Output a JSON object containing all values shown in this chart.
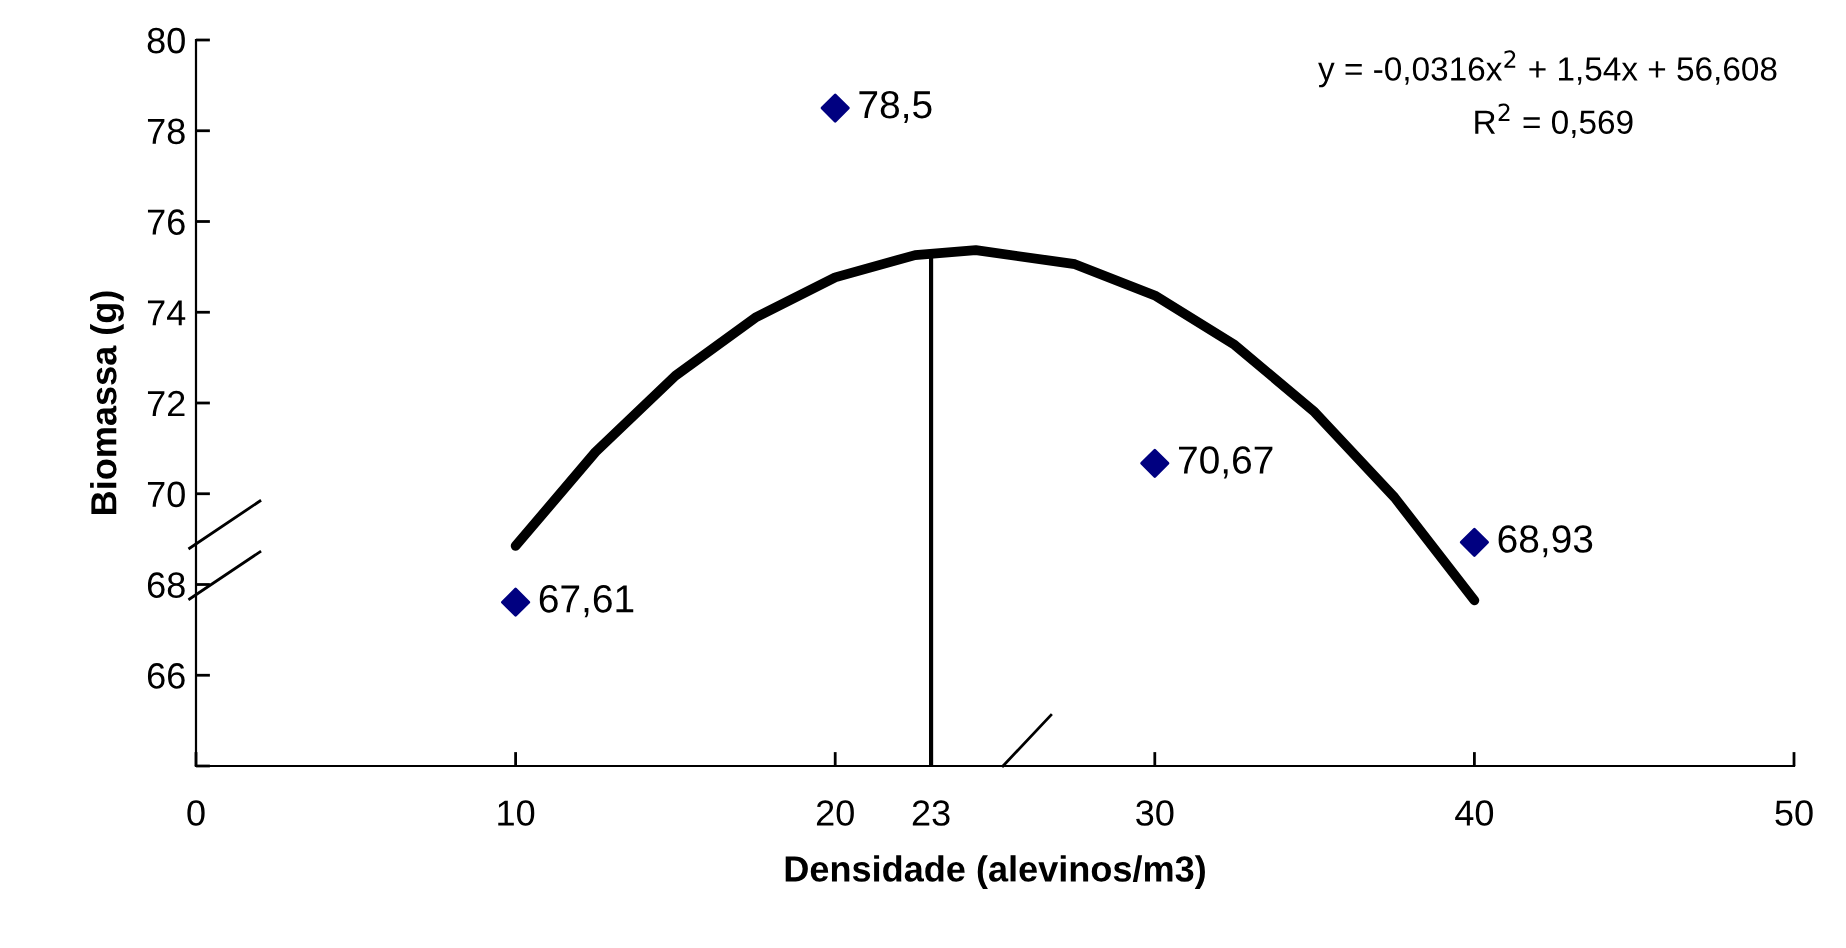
{
  "chart_data": {
    "type": "scatter",
    "xlabel": "Densidade (alevinos/m3)",
    "ylabel": "Biomassa (g)",
    "xlim": [
      0,
      50
    ],
    "xticks": [
      0,
      10,
      20,
      23,
      30,
      40,
      50
    ],
    "ylim": [
      64,
      80
    ],
    "yticks": [
      {
        "value": 64,
        "label": null
      },
      66,
      68,
      70,
      72,
      74,
      76,
      78,
      80
    ],
    "legend": false,
    "x": [
      10,
      20,
      30,
      40
    ],
    "series": [
      {
        "color": "#000080",
        "marker": "diamond",
        "values": [
          67.61,
          78.5,
          70.67,
          68.93
        ],
        "value_labels": [
          "67,61",
          "78,5",
          "70,67",
          "68,93"
        ]
      },
      {
        "type": "line",
        "color": "#000000",
        "x": [
          10,
          12.5,
          15,
          17.5,
          20,
          22.5,
          24.4,
          27.5,
          30,
          32.5,
          35,
          37.5,
          40
        ],
        "values": [
          68.85,
          70.92,
          72.6,
          73.88,
          74.77,
          75.26,
          75.37,
          75.06,
          74.37,
          73.28,
          71.8,
          69.92,
          67.65
        ],
        "line_style": "solid",
        "marker": "none"
      }
    ],
    "ref_lines": [
      {
        "axis": "x",
        "value": 23,
        "color": "#000000"
      }
    ],
    "annotations": [
      "y = -0,0316x$^{2}$ + 1,54x + 56,608",
      "R$^{2}$ = 0,569"
    ]
  }
}
